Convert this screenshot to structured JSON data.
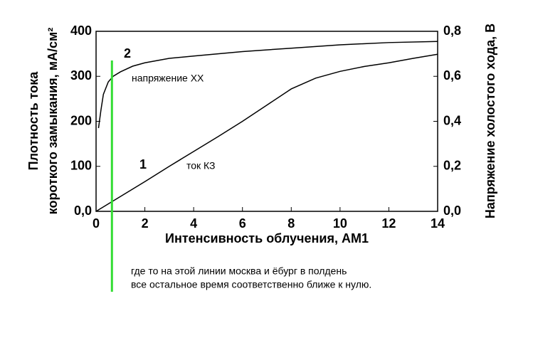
{
  "chart_data": {
    "type": "line",
    "xlabel": "Интенсивность облучения, АМ1",
    "ylabel": [
      "Плотность тока",
      "короткого замыкания, мА/см²"
    ],
    "y2label": "Напряжение холостого хода, В",
    "xlim": [
      0,
      14
    ],
    "xticks": [
      0,
      2,
      4,
      6,
      8,
      10,
      12,
      14
    ],
    "ylim": [
      0,
      400
    ],
    "yticks": [
      {
        "value": 0,
        "label": "0,0"
      },
      100,
      200,
      300,
      400
    ],
    "y2lim": [
      0,
      0.8
    ],
    "y2ticks": [
      {
        "value": 0,
        "label": "0,0"
      },
      {
        "value": 0.2,
        "label": "0,2"
      },
      {
        "value": 0.4,
        "label": "0,4"
      },
      {
        "value": 0.6,
        "label": "0,6"
      },
      {
        "value": 0.8,
        "label": "0,8"
      }
    ],
    "series": [
      {
        "name": "1",
        "label": "ток КЗ",
        "color": "#000000",
        "x": [
          0,
          1,
          2,
          3,
          4,
          5,
          6,
          7,
          8,
          9,
          10,
          11,
          12,
          13,
          14
        ],
        "values": [
          0,
          33,
          66,
          100,
          133,
          166,
          200,
          236,
          272,
          296,
          311,
          322,
          330,
          340,
          349
        ]
      },
      {
        "name": "2",
        "label": "напряжение ХХ",
        "color": "#000000",
        "axis": "y2",
        "x": [
          0.1,
          0.2,
          0.3,
          0.5,
          0.7,
          1,
          1.5,
          2,
          3,
          4,
          5,
          6,
          8,
          10,
          12,
          14
        ],
        "values": [
          0.37,
          0.45,
          0.52,
          0.575,
          0.6,
          0.62,
          0.645,
          0.66,
          0.68,
          0.69,
          0.7,
          0.71,
          0.725,
          0.74,
          0.75,
          0.755
        ]
      }
    ],
    "vline": {
      "x": 0.65,
      "color": "#33dd33"
    },
    "note": [
      "где то на этой линии москва и ёбург в полдень",
      "все остальное время соответственно ближе к нулю."
    ]
  }
}
